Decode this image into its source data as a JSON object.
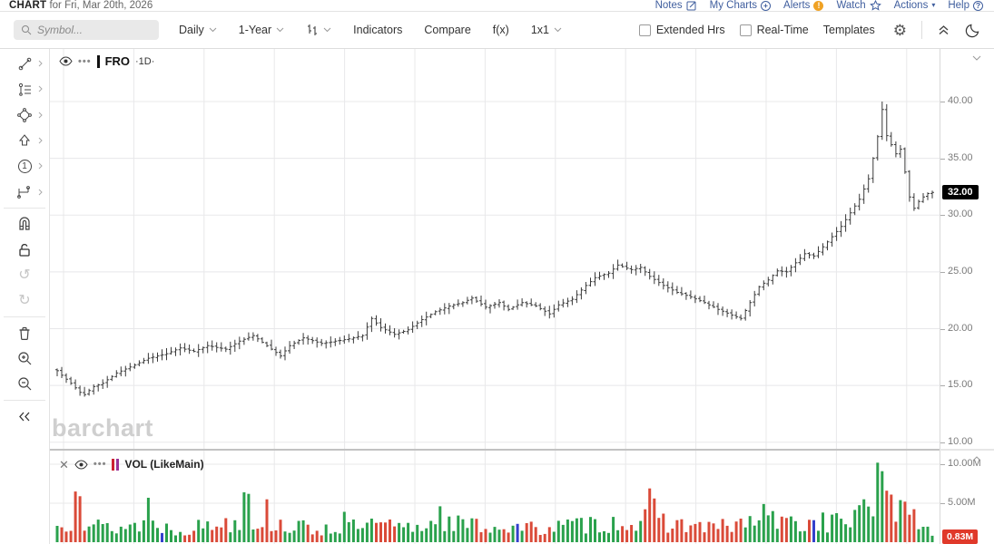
{
  "header": {
    "title": "CHART",
    "subtitle": "for Fri, Mar 20th, 2026",
    "links": [
      {
        "label": "Notes"
      },
      {
        "label": "My Charts"
      },
      {
        "label": "Alerts",
        "badge": "!"
      },
      {
        "label": "Watch"
      },
      {
        "label": "Actions"
      },
      {
        "label": "Help",
        "badge": "?"
      }
    ]
  },
  "toolbar": {
    "symbol_placeholder": "Symbol...",
    "frequency": "Daily",
    "range": "1-Year",
    "indicators": "Indicators",
    "compare": "Compare",
    "fx": "f(x)",
    "grid_layout": "1x1",
    "extended_hrs": "Extended Hrs",
    "real_time": "Real-Time",
    "templates": "Templates"
  },
  "price_pane": {
    "symbol": "FRO",
    "interval": "·1D·",
    "watermark": "barchart"
  },
  "volume_pane": {
    "label": "VOL (LikeMain)"
  },
  "chart_data": {
    "type": "ohlc-with-volume",
    "symbol": "FRO",
    "timeframe": "1D",
    "bars": 193,
    "price_axis": {
      "ticks": [
        40,
        35,
        30,
        25,
        20,
        15,
        10
      ],
      "labels": [
        "40.00",
        "35.00",
        "30.00",
        "25.00",
        "20.00",
        "15.00",
        "10.00"
      ],
      "range": [
        10,
        40
      ],
      "last_price": 32.0,
      "last_price_label": "32.00"
    },
    "volume_axis": {
      "ticks": [
        10,
        5
      ],
      "labels": [
        "10.00M",
        "5.00M"
      ],
      "last_volume": 0.83,
      "last_volume_label": "0.83M"
    },
    "close_anchors": [
      [
        0,
        16.3
      ],
      [
        1,
        15.9
      ],
      [
        3,
        15.2
      ],
      [
        5,
        14.4
      ],
      [
        6,
        14.2
      ],
      [
        8,
        14.9
      ],
      [
        10,
        15.2
      ],
      [
        13,
        16.1
      ],
      [
        17,
        16.8
      ],
      [
        20,
        17.4
      ],
      [
        24,
        17.8
      ],
      [
        27,
        18.3
      ],
      [
        30,
        18.0
      ],
      [
        33,
        18.5
      ],
      [
        37,
        18.2
      ],
      [
        40,
        18.9
      ],
      [
        43,
        19.4
      ],
      [
        46,
        18.5
      ],
      [
        49,
        17.6
      ],
      [
        51,
        18.5
      ],
      [
        54,
        19.2
      ],
      [
        58,
        18.7
      ],
      [
        61,
        18.9
      ],
      [
        64,
        19.1
      ],
      [
        67,
        19.4
      ],
      [
        69,
        20.9
      ],
      [
        71,
        20.1
      ],
      [
        74,
        19.5
      ],
      [
        77,
        19.9
      ],
      [
        80,
        20.8
      ],
      [
        83,
        21.5
      ],
      [
        86,
        22.0
      ],
      [
        89,
        22.3
      ],
      [
        91,
        22.7
      ],
      [
        94,
        21.9
      ],
      [
        97,
        22.3
      ],
      [
        99,
        21.7
      ],
      [
        102,
        22.3
      ],
      [
        105,
        22.0
      ],
      [
        108,
        21.3
      ],
      [
        110,
        22.1
      ],
      [
        113,
        22.6
      ],
      [
        116,
        23.8
      ],
      [
        118,
        24.5
      ],
      [
        121,
        24.9
      ],
      [
        123,
        25.6
      ],
      [
        126,
        25.2
      ],
      [
        128,
        25.4
      ],
      [
        130,
        24.6
      ],
      [
        133,
        23.8
      ],
      [
        136,
        23.2
      ],
      [
        139,
        22.8
      ],
      [
        142,
        22.3
      ],
      [
        145,
        21.7
      ],
      [
        148,
        21.2
      ],
      [
        150,
        20.9
      ],
      [
        152,
        22.3
      ],
      [
        154,
        23.7
      ],
      [
        156,
        24.3
      ],
      [
        158,
        25.1
      ],
      [
        160,
        25.0
      ],
      [
        162,
        25.8
      ],
      [
        164,
        26.6
      ],
      [
        166,
        26.4
      ],
      [
        168,
        27.2
      ],
      [
        170,
        28.1
      ],
      [
        172,
        29.0
      ],
      [
        174,
        30.2
      ],
      [
        176,
        31.4
      ],
      [
        178,
        33.2
      ],
      [
        179,
        35.0
      ],
      [
        180,
        36.9
      ],
      [
        181,
        39.3
      ],
      [
        182,
        37.0
      ],
      [
        183,
        36.2
      ],
      [
        184,
        35.4
      ],
      [
        185,
        35.8
      ],
      [
        186,
        33.8
      ],
      [
        187,
        31.6
      ],
      [
        188,
        30.6
      ],
      [
        189,
        31.2
      ],
      [
        190,
        31.6
      ],
      [
        191,
        31.9
      ],
      [
        192,
        32.0
      ]
    ],
    "peak_bar": {
      "index": 181,
      "high": 40.0
    },
    "volume_anchors": [
      [
        0,
        2.0
      ],
      [
        4,
        3.2
      ],
      [
        8,
        2.2
      ],
      [
        13,
        1.8
      ],
      [
        20,
        2.6
      ],
      [
        26,
        1.6
      ],
      [
        33,
        2.2
      ],
      [
        41,
        3.0
      ],
      [
        48,
        2.4
      ],
      [
        56,
        1.7
      ],
      [
        63,
        1.9
      ],
      [
        70,
        2.2
      ],
      [
        78,
        1.8
      ],
      [
        84,
        2.8
      ],
      [
        90,
        2.2
      ],
      [
        97,
        2.0
      ],
      [
        104,
        1.8
      ],
      [
        111,
        2.1
      ],
      [
        118,
        2.4
      ],
      [
        126,
        2.6
      ],
      [
        131,
        3.0
      ],
      [
        138,
        2.2
      ],
      [
        145,
        1.9
      ],
      [
        150,
        2.4
      ],
      [
        156,
        2.8
      ],
      [
        163,
        2.4
      ],
      [
        170,
        2.6
      ],
      [
        176,
        3.4
      ],
      [
        181,
        5.5
      ],
      [
        186,
        4.0
      ],
      [
        192,
        1.2
      ]
    ],
    "volume_spikes": {
      "4": 6.5,
      "5": 5.9,
      "20": 5.7,
      "41": 6.4,
      "42": 6.2,
      "46": 5.5,
      "63": 3.9,
      "84": 4.6,
      "130": 6.9,
      "131": 5.6,
      "155": 4.9,
      "168": 3.8,
      "180": 10.2,
      "181": 9.1,
      "182": 6.6,
      "183": 6.1,
      "185": 5.4,
      "186": 5.2,
      "192": 0.83
    },
    "volume_blue_indices": [
      23,
      101,
      166
    ],
    "colors": {
      "ohlc_bar": "#3a3a3a",
      "vol_up": "#2aa14c",
      "vol_down": "#da4a38",
      "vol_blue": "#3340cc",
      "grid": "#e8e8ea",
      "axis_text": "#7a7a7a",
      "last_price_bg": "#000000",
      "last_vol_bg": "#e0392a",
      "legend_bar_red": "#cc2233",
      "legend_bar_purple": "#993299"
    },
    "legend_price": "FRO ·1D·",
    "legend_volume": "VOL (LikeMain)"
  }
}
